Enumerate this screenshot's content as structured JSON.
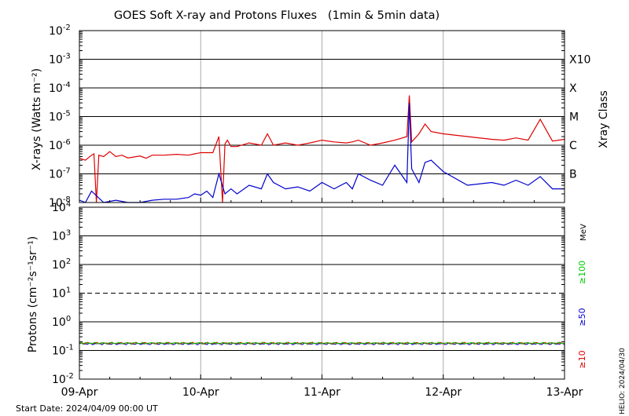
{
  "chart_data": [
    {
      "type": "line",
      "title": "GOES Soft X-ray and Protons Fluxes   (1min & 5min data)",
      "ylabel": "X-rays (Watts m⁻²)",
      "yscale": "log",
      "ylim": [
        1e-08,
        0.01
      ],
      "y_tick_labels": [
        {
          "mantissa": "10",
          "exp": "-2",
          "value": 0.01
        },
        {
          "mantissa": "10",
          "exp": "-3",
          "value": 0.001
        },
        {
          "mantissa": "10",
          "exp": "-4",
          "value": 0.0001
        },
        {
          "mantissa": "10",
          "exp": "-5",
          "value": 1e-05
        },
        {
          "mantissa": "10",
          "exp": "-6",
          "value": 1e-06
        },
        {
          "mantissa": "10",
          "exp": "-7",
          "value": 1e-07
        },
        {
          "mantissa": "10",
          "exp": "-8",
          "value": 1e-08
        }
      ],
      "right_axis_label": "Xray Class",
      "class_labels": [
        {
          "label": "X10",
          "value": 0.001
        },
        {
          "label": "X",
          "value": 0.0001
        },
        {
          "label": "M",
          "value": 1e-05
        },
        {
          "label": "C",
          "value": 1e-06
        },
        {
          "label": "B",
          "value": 1e-07
        }
      ],
      "xlim": [
        "2024-04-09",
        "2024-04-13"
      ],
      "grid": true,
      "series": [
        {
          "color": "#dd0000",
          "x": [
            0,
            0.05,
            0.1,
            0.12,
            0.14,
            0.16,
            0.2,
            0.25,
            0.3,
            0.35,
            0.4,
            0.5,
            0.55,
            0.6,
            0.7,
            0.8,
            0.9,
            0.95,
            1.0,
            1.1,
            1.15,
            1.18,
            1.2,
            1.22,
            1.25,
            1.3,
            1.4,
            1.5,
            1.55,
            1.6,
            1.7,
            1.8,
            1.9,
            2.0,
            2.1,
            2.2,
            2.25,
            2.3,
            2.4,
            2.5,
            2.6,
            2.7,
            2.72,
            2.74,
            2.8,
            2.85,
            2.9,
            3.0,
            3.2,
            3.4,
            3.5,
            3.6,
            3.7,
            3.8,
            3.9,
            4.0
          ],
          "y": [
            3.5e-07,
            3e-07,
            4.5e-07,
            5e-07,
            1e-08,
            4.5e-07,
            4e-07,
            6e-07,
            4e-07,
            4.5e-07,
            3.6e-07,
            4.2e-07,
            3.5e-07,
            4.5e-07,
            4.5e-07,
            4.8e-07,
            4.5e-07,
            5e-07,
            5.5e-07,
            5.5e-07,
            2e-06,
            1e-08,
            1.1e-06,
            1.5e-06,
            9e-07,
            9e-07,
            1.2e-06,
            1e-06,
            2.5e-06,
            1e-06,
            1.2e-06,
            1e-06,
            1.2e-06,
            1.5e-06,
            1.3e-06,
            1.2e-06,
            1.3e-06,
            1.5e-06,
            1e-06,
            1.2e-06,
            1.5e-06,
            2e-06,
            5.5e-05,
            1.3e-06,
            2.5e-06,
            5.5e-06,
            3e-06,
            2.5e-06,
            2e-06,
            1.6e-06,
            1.5e-06,
            1.8e-06,
            1.5e-06,
            8e-06,
            1.4e-06,
            1.6e-06
          ]
        },
        {
          "color": "#0000cc",
          "x": [
            0,
            0.05,
            0.1,
            0.2,
            0.3,
            0.4,
            0.5,
            0.6,
            0.7,
            0.8,
            0.9,
            0.95,
            1.0,
            1.05,
            1.1,
            1.15,
            1.2,
            1.25,
            1.3,
            1.4,
            1.5,
            1.55,
            1.6,
            1.7,
            1.8,
            1.9,
            2.0,
            2.1,
            2.2,
            2.25,
            2.3,
            2.4,
            2.5,
            2.6,
            2.7,
            2.72,
            2.74,
            2.8,
            2.85,
            2.9,
            3.0,
            3.2,
            3.4,
            3.5,
            3.6,
            3.7,
            3.8,
            3.9,
            4.0
          ],
          "y": [
            1.2e-08,
            1e-08,
            2.5e-08,
            1e-08,
            1.2e-08,
            1e-08,
            1e-08,
            1.2e-08,
            1.3e-08,
            1.3e-08,
            1.5e-08,
            2e-08,
            1.8e-08,
            2.5e-08,
            1.5e-08,
            1e-07,
            2e-08,
            3e-08,
            2e-08,
            4e-08,
            3e-08,
            1e-07,
            5e-08,
            3e-08,
            3.5e-08,
            2.5e-08,
            5e-08,
            3e-08,
            5e-08,
            3e-08,
            1e-07,
            6e-08,
            4e-08,
            2e-07,
            5e-08,
            3e-05,
            1.5e-07,
            5e-08,
            2.5e-07,
            3e-07,
            1.2e-07,
            4e-08,
            5e-08,
            4e-08,
            6e-08,
            4e-08,
            8e-08,
            3e-08,
            3e-08
          ]
        }
      ]
    },
    {
      "type": "line",
      "ylabel": "Protons (cm⁻²s⁻¹sr⁻¹)",
      "yscale": "log",
      "ylim": [
        0.01,
        10000
      ],
      "y_tick_labels": [
        {
          "mantissa": "10",
          "exp": "4",
          "value": 10000.0
        },
        {
          "mantissa": "10",
          "exp": "3",
          "value": 1000.0
        },
        {
          "mantissa": "10",
          "exp": "2",
          "value": 100.0
        },
        {
          "mantissa": "10",
          "exp": "1",
          "value": 10.0
        },
        {
          "mantissa": "10",
          "exp": "0",
          "value": 1.0
        },
        {
          "mantissa": "10",
          "exp": "-1",
          "value": 0.1
        },
        {
          "mantissa": "10",
          "exp": "-2",
          "value": 0.01
        }
      ],
      "threshold": 10,
      "energy_unit": "MeV",
      "energy_labels": [
        {
          "label": "≥100",
          "color": "#00cc00"
        },
        {
          "label": "≥50",
          "color": "#0000cc"
        },
        {
          "label": "≥10",
          "color": "#dd0000"
        }
      ],
      "xlim": [
        "2024-04-09",
        "2024-04-13"
      ],
      "grid": true,
      "series": [
        {
          "color": "#0000cc",
          "level": 0.17
        },
        {
          "color": "#dd0000",
          "level": 0.18
        },
        {
          "color": "#00cc00",
          "level": 0.18
        }
      ]
    }
  ],
  "x_tick_labels": [
    "09-Apr",
    "10-Apr",
    "11-Apr",
    "12-Apr",
    "13-Apr"
  ],
  "start_date": "Start Date: 2024/04/09 00:00 UT",
  "footer_tag": "HELIO: 2024/04/30"
}
